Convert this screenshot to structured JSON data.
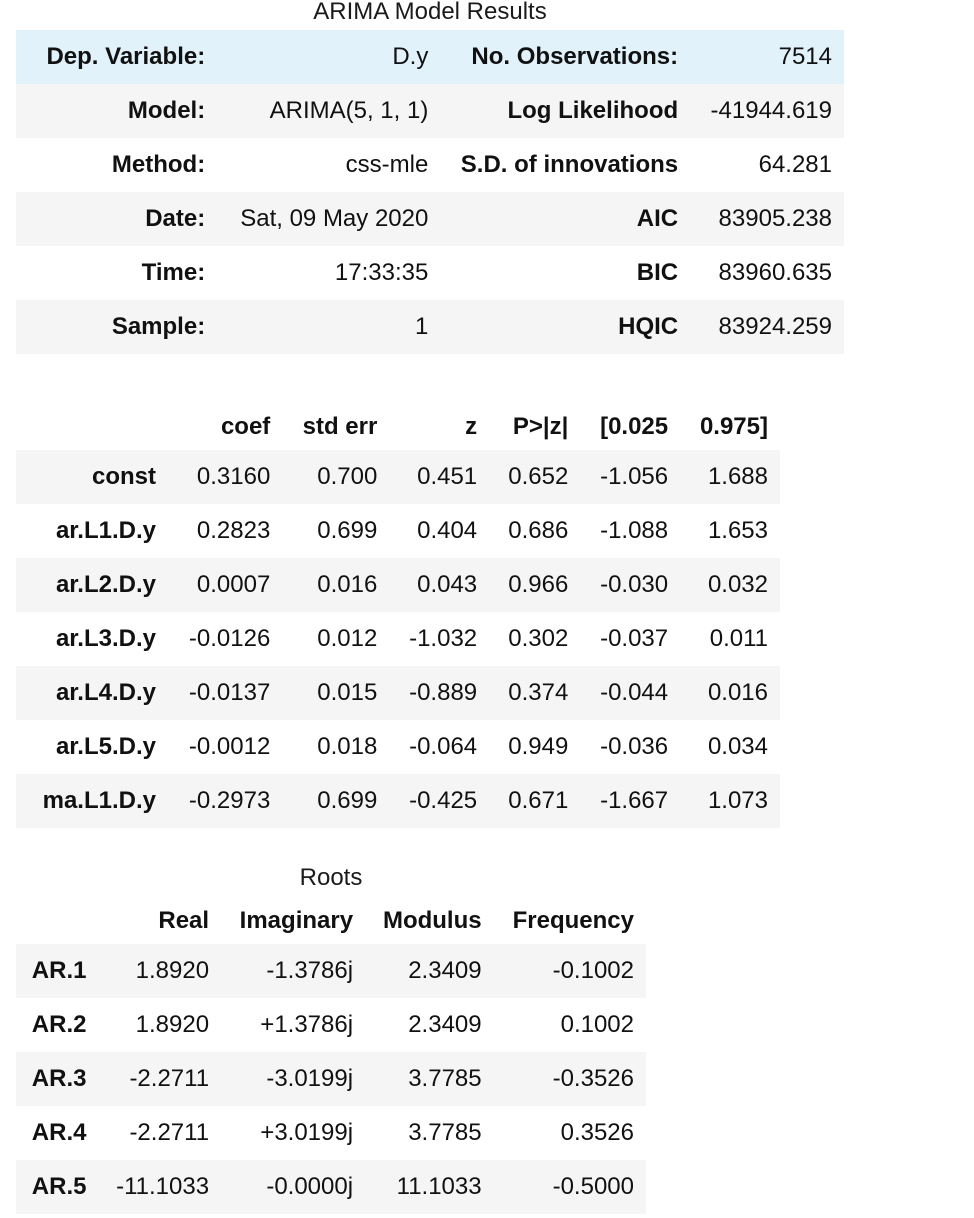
{
  "summary": {
    "caption": "ARIMA Model Results",
    "rows": [
      {
        "l1": "Dep. Variable:",
        "v1": "D.y",
        "l2": "No. Observations:",
        "v2": "7514"
      },
      {
        "l1": "Model:",
        "v1": "ARIMA(5, 1, 1)",
        "l2": "Log Likelihood",
        "v2": "-41944.619"
      },
      {
        "l1": "Method:",
        "v1": "css-mle",
        "l2": "S.D. of innovations",
        "v2": "64.281"
      },
      {
        "l1": "Date:",
        "v1": "Sat, 09 May 2020",
        "l2": "AIC",
        "v2": "83905.238"
      },
      {
        "l1": "Time:",
        "v1": "17:33:35",
        "l2": "BIC",
        "v2": "83960.635"
      },
      {
        "l1": "Sample:",
        "v1": "1",
        "l2": "HQIC",
        "v2": "83924.259"
      }
    ]
  },
  "coefficients": {
    "headers": [
      "",
      "coef",
      "std err",
      "z",
      "P>|z|",
      "[0.025",
      "0.975]"
    ],
    "rows": [
      {
        "name": "const",
        "values": [
          "0.3160",
          "0.700",
          "0.451",
          "0.652",
          "-1.056",
          "1.688"
        ]
      },
      {
        "name": "ar.L1.D.y",
        "values": [
          "0.2823",
          "0.699",
          "0.404",
          "0.686",
          "-1.088",
          "1.653"
        ]
      },
      {
        "name": "ar.L2.D.y",
        "values": [
          "0.0007",
          "0.016",
          "0.043",
          "0.966",
          "-0.030",
          "0.032"
        ]
      },
      {
        "name": "ar.L3.D.y",
        "values": [
          "-0.0126",
          "0.012",
          "-1.032",
          "0.302",
          "-0.037",
          "0.011"
        ]
      },
      {
        "name": "ar.L4.D.y",
        "values": [
          "-0.0137",
          "0.015",
          "-0.889",
          "0.374",
          "-0.044",
          "0.016"
        ]
      },
      {
        "name": "ar.L5.D.y",
        "values": [
          "-0.0012",
          "0.018",
          "-0.064",
          "0.949",
          "-0.036",
          "0.034"
        ]
      },
      {
        "name": "ma.L1.D.y",
        "values": [
          "-0.2973",
          "0.699",
          "-0.425",
          "0.671",
          "-1.667",
          "1.073"
        ]
      }
    ]
  },
  "roots": {
    "caption": "Roots",
    "headers": [
      "",
      "Real",
      "Imaginary",
      "Modulus",
      "Frequency"
    ],
    "rows": [
      {
        "name": "AR.1",
        "values": [
          "1.8920",
          "-1.3786j",
          "2.3409",
          "-0.1002"
        ]
      },
      {
        "name": "AR.2",
        "values": [
          "1.8920",
          "+1.3786j",
          "2.3409",
          "0.1002"
        ]
      },
      {
        "name": "AR.3",
        "values": [
          "-2.2711",
          "-3.0199j",
          "3.7785",
          "-0.3526"
        ]
      },
      {
        "name": "AR.4",
        "values": [
          "-2.2711",
          "+3.0199j",
          "3.7785",
          "0.3526"
        ]
      },
      {
        "name": "AR.5",
        "values": [
          "-11.1033",
          "-0.0000j",
          "11.1033",
          "-0.5000"
        ]
      }
    ]
  },
  "colors": {
    "row_shade": "#f5f5f5",
    "row_hover": "#e1f2fb",
    "text": "#111111"
  }
}
